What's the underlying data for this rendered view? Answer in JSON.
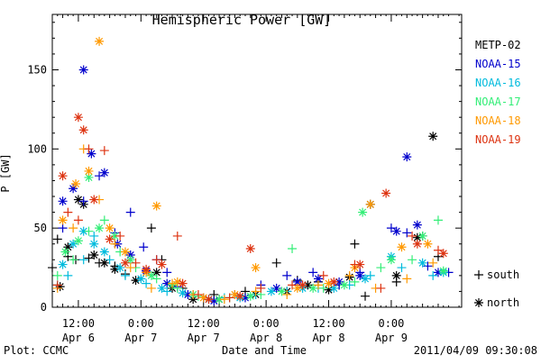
{
  "chart_data": {
    "type": "scatter",
    "title": "Hemispheric Power [GW]",
    "ylabel": "P [GW]",
    "xlabel": "Date and Time",
    "ylim": [
      0,
      185
    ],
    "yticks": [
      0,
      50,
      100,
      150
    ],
    "xlim": [
      "2011-04-06 07:00",
      "2011-04-09 13:30"
    ],
    "x_axis": "datetime",
    "xticks": [
      {
        "at": "2011-04-06 12:00",
        "time": "12:00",
        "date": "Apr 6"
      },
      {
        "at": "2011-04-07 00:00",
        "time": "0:00",
        "date": "Apr 7"
      },
      {
        "at": "2011-04-07 12:00",
        "time": "12:00",
        "date": "Apr 7"
      },
      {
        "at": "2011-04-08 00:00",
        "time": "0:00",
        "date": "Apr 8"
      },
      {
        "at": "2011-04-08 12:00",
        "time": "12:00",
        "date": "Apr 8"
      },
      {
        "at": "2011-04-09 00:00",
        "time": "0:00",
        "date": "Apr 9"
      }
    ],
    "legend_position": "right",
    "marker_legend": [
      {
        "marker": "+",
        "label": "south"
      },
      {
        "marker": "*",
        "label": "north"
      }
    ],
    "series": [
      {
        "name": "METP-02",
        "color": "#000000",
        "south": [
          [
            "2011-04-06 07:00",
            25
          ],
          [
            "2011-04-06 08:00",
            43
          ],
          [
            "2011-04-06 10:00",
            32
          ],
          [
            "2011-04-06 11:30",
            30
          ],
          [
            "2011-04-06 14:00",
            31
          ],
          [
            "2011-04-06 16:00",
            28
          ],
          [
            "2011-04-06 19:00",
            26
          ],
          [
            "2011-04-06 21:00",
            21
          ],
          [
            "2011-04-07 02:00",
            50
          ],
          [
            "2011-04-07 04:00",
            30
          ],
          [
            "2011-04-07 08:00",
            12
          ],
          [
            "2011-04-07 14:00",
            8
          ],
          [
            "2011-04-07 20:00",
            10
          ],
          [
            "2011-04-08 02:00",
            28
          ],
          [
            "2011-04-08 06:00",
            17
          ],
          [
            "2011-04-08 10:00",
            16
          ],
          [
            "2011-04-08 14:00",
            14
          ],
          [
            "2011-04-08 17:00",
            40
          ],
          [
            "2011-04-08 19:00",
            7
          ],
          [
            "2011-04-09 01:00",
            16
          ],
          [
            "2011-04-09 06:00",
            45
          ],
          [
            "2011-04-09 09:00",
            32
          ]
        ],
        "north": [
          [
            "2011-04-06 08:30",
            13
          ],
          [
            "2011-04-06 10:00",
            38
          ],
          [
            "2011-04-06 12:00",
            68
          ],
          [
            "2011-04-06 13:00",
            65
          ],
          [
            "2011-04-06 15:00",
            33
          ],
          [
            "2011-04-06 17:00",
            28
          ],
          [
            "2011-04-06 19:00",
            24
          ],
          [
            "2011-04-06 23:00",
            17
          ],
          [
            "2011-04-07 03:00",
            22
          ],
          [
            "2011-04-07 06:00",
            12
          ],
          [
            "2011-04-07 10:00",
            5
          ],
          [
            "2011-04-07 15:00",
            5
          ],
          [
            "2011-04-07 22:00",
            8
          ],
          [
            "2011-04-08 04:00",
            10
          ],
          [
            "2011-04-08 08:00",
            14
          ],
          [
            "2011-04-08 12:00",
            11
          ],
          [
            "2011-04-08 16:00",
            19
          ],
          [
            "2011-04-08 20:00",
            65
          ],
          [
            "2011-04-09 01:00",
            20
          ],
          [
            "2011-04-09 05:00",
            44
          ],
          [
            "2011-04-09 08:00",
            108
          ]
        ]
      },
      {
        "name": "NOAA-15",
        "color": "#0000cc",
        "south": [
          [
            "2011-04-06 09:00",
            50
          ],
          [
            "2011-04-06 13:00",
            67
          ],
          [
            "2011-04-06 16:00",
            83
          ],
          [
            "2011-04-06 19:00",
            47
          ],
          [
            "2011-04-06 22:00",
            60
          ],
          [
            "2011-04-07 00:30",
            38
          ],
          [
            "2011-04-07 03:00",
            30
          ],
          [
            "2011-04-07 05:00",
            22
          ],
          [
            "2011-04-07 07:00",
            13
          ],
          [
            "2011-04-07 12:00",
            6
          ],
          [
            "2011-04-07 18:00",
            8
          ],
          [
            "2011-04-07 23:00",
            14
          ],
          [
            "2011-04-08 04:00",
            20
          ],
          [
            "2011-04-08 09:00",
            22
          ],
          [
            "2011-04-08 14:00",
            14
          ],
          [
            "2011-04-08 18:00",
            22
          ],
          [
            "2011-04-09 00:00",
            50
          ],
          [
            "2011-04-09 03:00",
            47
          ],
          [
            "2011-04-09 07:00",
            26
          ],
          [
            "2011-04-09 11:00",
            22
          ]
        ],
        "north": [
          [
            "2011-04-06 09:00",
            67
          ],
          [
            "2011-04-06 11:00",
            75
          ],
          [
            "2011-04-06 13:00",
            150
          ],
          [
            "2011-04-06 14:30",
            97
          ],
          [
            "2011-04-06 17:00",
            85
          ],
          [
            "2011-04-06 19:30",
            40
          ],
          [
            "2011-04-06 22:00",
            33
          ],
          [
            "2011-04-07 01:00",
            23
          ],
          [
            "2011-04-07 05:00",
            15
          ],
          [
            "2011-04-07 09:00",
            8
          ],
          [
            "2011-04-07 14:00",
            4
          ],
          [
            "2011-04-07 20:00",
            6
          ],
          [
            "2011-04-08 02:00",
            12
          ],
          [
            "2011-04-08 06:00",
            16
          ],
          [
            "2011-04-08 10:00",
            18
          ],
          [
            "2011-04-08 14:00",
            16
          ],
          [
            "2011-04-08 18:00",
            20
          ],
          [
            "2011-04-09 01:00",
            48
          ],
          [
            "2011-04-09 03:00",
            95
          ],
          [
            "2011-04-09 05:00",
            52
          ],
          [
            "2011-04-09 09:00",
            22
          ]
        ]
      },
      {
        "name": "NOAA-16",
        "color": "#00bbdd",
        "south": [
          [
            "2011-04-06 08:00",
            14
          ],
          [
            "2011-04-06 10:00",
            20
          ],
          [
            "2011-04-06 13:00",
            30
          ],
          [
            "2011-04-06 15:00",
            45
          ],
          [
            "2011-04-06 18:00",
            30
          ],
          [
            "2011-04-06 21:00",
            20
          ],
          [
            "2011-04-07 01:00",
            15
          ],
          [
            "2011-04-07 05:00",
            10
          ],
          [
            "2011-04-07 10:00",
            8
          ],
          [
            "2011-04-07 16:00",
            6
          ],
          [
            "2011-04-07 22:00",
            8
          ],
          [
            "2011-04-08 04:00",
            10
          ],
          [
            "2011-04-08 10:00",
            12
          ],
          [
            "2011-04-08 16:00",
            14
          ],
          [
            "2011-04-08 20:00",
            20
          ],
          [
            "2011-04-09 02:00",
            25
          ],
          [
            "2011-04-09 08:00",
            20
          ]
        ],
        "north": [
          [
            "2011-04-06 09:00",
            27
          ],
          [
            "2011-04-06 11:00",
            40
          ],
          [
            "2011-04-06 13:00",
            48
          ],
          [
            "2011-04-06 15:00",
            40
          ],
          [
            "2011-04-06 17:00",
            35
          ],
          [
            "2011-04-06 20:00",
            25
          ],
          [
            "2011-04-07 00:00",
            18
          ],
          [
            "2011-04-07 04:00",
            12
          ],
          [
            "2011-04-07 08:00",
            9
          ],
          [
            "2011-04-07 13:00",
            5
          ],
          [
            "2011-04-07 19:00",
            6
          ],
          [
            "2011-04-08 01:00",
            10
          ],
          [
            "2011-04-08 07:00",
            12
          ],
          [
            "2011-04-08 13:00",
            12
          ],
          [
            "2011-04-08 19:00",
            18
          ],
          [
            "2011-04-09 00:00",
            32
          ],
          [
            "2011-04-09 06:00",
            28
          ],
          [
            "2011-04-09 10:00",
            22
          ]
        ]
      },
      {
        "name": "NOAA-17",
        "color": "#33ee77",
        "south": [
          [
            "2011-04-06 08:00",
            20
          ],
          [
            "2011-04-06 11:00",
            30
          ],
          [
            "2011-04-06 14:00",
            48
          ],
          [
            "2011-04-06 17:00",
            55
          ],
          [
            "2011-04-06 20:00",
            35
          ],
          [
            "2011-04-06 23:00",
            25
          ],
          [
            "2011-04-07 03:00",
            18
          ],
          [
            "2011-04-07 07:00",
            12
          ],
          [
            "2011-04-07 11:00",
            7
          ],
          [
            "2011-04-07 17:00",
            6
          ],
          [
            "2011-04-07 23:00",
            8
          ],
          [
            "2011-04-08 05:00",
            37
          ],
          [
            "2011-04-08 11:00",
            12
          ],
          [
            "2011-04-08 17:00",
            16
          ],
          [
            "2011-04-08 22:00",
            25
          ],
          [
            "2011-04-09 04:00",
            30
          ],
          [
            "2011-04-09 09:00",
            55
          ]
        ],
        "north": [
          [
            "2011-04-06 09:30",
            35
          ],
          [
            "2011-04-06 12:00",
            42
          ],
          [
            "2011-04-06 14:00",
            82
          ],
          [
            "2011-04-06 16:00",
            50
          ],
          [
            "2011-04-06 19:00",
            45
          ],
          [
            "2011-04-06 22:00",
            30
          ],
          [
            "2011-04-07 02:00",
            20
          ],
          [
            "2011-04-07 06:00",
            14
          ],
          [
            "2011-04-07 10:00",
            8
          ],
          [
            "2011-04-07 15:00",
            5
          ],
          [
            "2011-04-07 21:00",
            7
          ],
          [
            "2011-04-08 03:00",
            10
          ],
          [
            "2011-04-08 09:00",
            12
          ],
          [
            "2011-04-08 15:00",
            14
          ],
          [
            "2011-04-08 18:30",
            60
          ],
          [
            "2011-04-09 00:00",
            30
          ],
          [
            "2011-04-09 06:00",
            45
          ],
          [
            "2011-04-09 10:00",
            23
          ]
        ]
      },
      {
        "name": "NOAA-18",
        "color": "#ff9900",
        "south": [
          [
            "2011-04-06 08:00",
            12
          ],
          [
            "2011-04-06 11:00",
            50
          ],
          [
            "2011-04-06 13:00",
            100
          ],
          [
            "2011-04-06 16:00",
            68
          ],
          [
            "2011-04-06 19:00",
            40
          ],
          [
            "2011-04-06 22:00",
            25
          ],
          [
            "2011-04-07 02:00",
            12
          ],
          [
            "2011-04-07 06:00",
            15
          ],
          [
            "2011-04-07 10:00",
            8
          ],
          [
            "2011-04-07 16:00",
            5
          ],
          [
            "2011-04-07 22:00",
            10
          ],
          [
            "2011-04-08 04:00",
            8
          ],
          [
            "2011-04-08 10:00",
            14
          ],
          [
            "2011-04-08 16:00",
            20
          ],
          [
            "2011-04-08 21:00",
            12
          ],
          [
            "2011-04-09 03:00",
            18
          ],
          [
            "2011-04-09 08:00",
            28
          ]
        ],
        "north": [
          [
            "2011-04-06 09:00",
            55
          ],
          [
            "2011-04-06 11:30",
            78
          ],
          [
            "2011-04-06 14:00",
            86
          ],
          [
            "2011-04-06 16:00",
            168
          ],
          [
            "2011-04-06 18:00",
            50
          ],
          [
            "2011-04-06 21:00",
            35
          ],
          [
            "2011-04-07 01:00",
            22
          ],
          [
            "2011-04-07 03:00",
            64
          ],
          [
            "2011-04-07 07:00",
            16
          ],
          [
            "2011-04-07 12:00",
            6
          ],
          [
            "2011-04-07 18:00",
            8
          ],
          [
            "2011-04-07 22:00",
            25
          ],
          [
            "2011-04-08 06:00",
            12
          ],
          [
            "2011-04-08 12:00",
            15
          ],
          [
            "2011-04-08 17:00",
            25
          ],
          [
            "2011-04-08 20:00",
            65
          ],
          [
            "2011-04-09 02:00",
            38
          ],
          [
            "2011-04-09 07:00",
            40
          ]
        ]
      },
      {
        "name": "NOAA-19",
        "color": "#dd3311",
        "south": [
          [
            "2011-04-06 08:00",
            14
          ],
          [
            "2011-04-06 10:00",
            60
          ],
          [
            "2011-04-06 12:00",
            55
          ],
          [
            "2011-04-06 14:00",
            100
          ],
          [
            "2011-04-06 17:00",
            99
          ],
          [
            "2011-04-06 20:00",
            45
          ],
          [
            "2011-04-06 23:00",
            28
          ],
          [
            "2011-04-07 03:00",
            30
          ],
          [
            "2011-04-07 07:00",
            45
          ],
          [
            "2011-04-07 11:00",
            8
          ],
          [
            "2011-04-07 17:00",
            6
          ],
          [
            "2011-04-07 23:00",
            12
          ],
          [
            "2011-04-08 05:00",
            14
          ],
          [
            "2011-04-08 11:00",
            20
          ],
          [
            "2011-04-08 17:00",
            27
          ],
          [
            "2011-04-08 22:00",
            12
          ],
          [
            "2011-04-09 04:00",
            45
          ],
          [
            "2011-04-09 09:00",
            36
          ]
        ],
        "north": [
          [
            "2011-04-06 09:00",
            83
          ],
          [
            "2011-04-06 12:00",
            120
          ],
          [
            "2011-04-06 13:00",
            112
          ],
          [
            "2011-04-06 15:00",
            68
          ],
          [
            "2011-04-06 18:00",
            43
          ],
          [
            "2011-04-06 21:00",
            28
          ],
          [
            "2011-04-07 01:00",
            24
          ],
          [
            "2011-04-07 04:00",
            27
          ],
          [
            "2011-04-07 08:00",
            15
          ],
          [
            "2011-04-07 13:00",
            5
          ],
          [
            "2011-04-07 19:00",
            7
          ],
          [
            "2011-04-07 21:00",
            37
          ],
          [
            "2011-04-08 07:00",
            14
          ],
          [
            "2011-04-08 13:00",
            16
          ],
          [
            "2011-04-08 18:00",
            27
          ],
          [
            "2011-04-08 23:00",
            72
          ],
          [
            "2011-04-09 05:00",
            40
          ],
          [
            "2011-04-09 10:00",
            34
          ]
        ]
      }
    ]
  },
  "footer": {
    "left": "Plot: CCMC",
    "right": "2011/04/09 09:30:08"
  }
}
